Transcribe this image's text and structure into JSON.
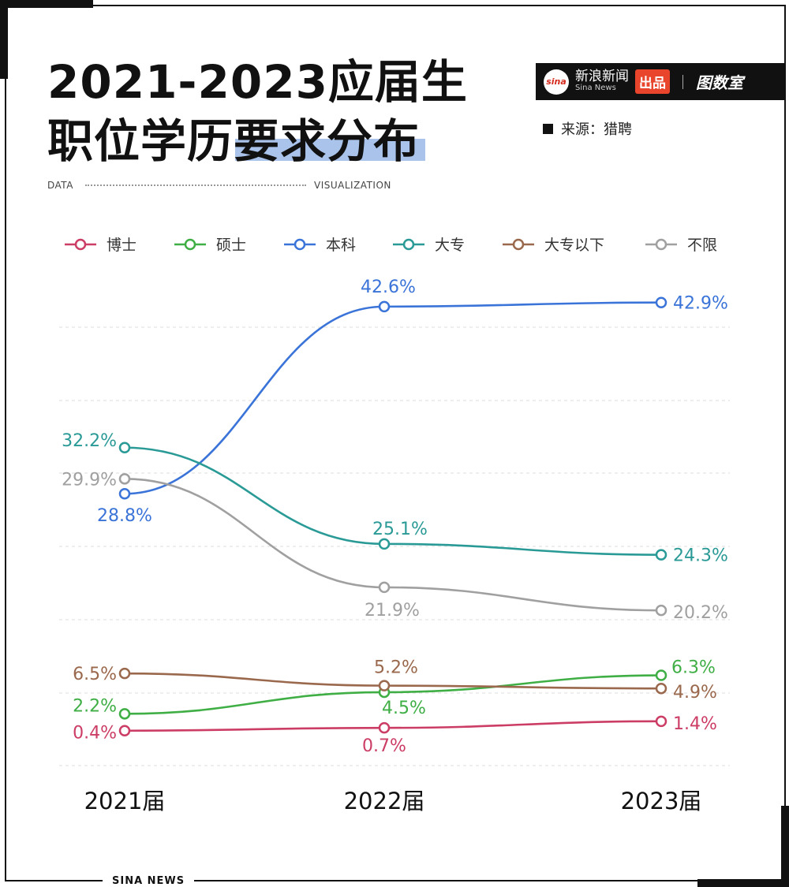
{
  "header": {
    "title_line1": "2021-2023应届生",
    "title_line2": "职位学历要求分布",
    "data_label": "DATA",
    "visualization_label": "VISUALIZATION",
    "brand_logo": "sina",
    "brand_name": "新浪新闻",
    "brand_sub": "Sina News",
    "brand_tag": "出品",
    "brand_logo2": "图数室",
    "source": "来源：猎聘"
  },
  "footer": {
    "label": "SINA  NEWS"
  },
  "colors": {
    "博士": "#cc3d65",
    "硕士": "#3fae45",
    "本科": "#3b74d8",
    "大专": "#2a9a96",
    "大专以下": "#9a684c",
    "不限": "#a0a0a0"
  },
  "chart_data": {
    "type": "line",
    "categories": [
      "2021届",
      "2022届",
      "2023届"
    ],
    "legend_position": "top",
    "grid": true,
    "y_scale": "broken",
    "series": [
      {
        "name": "博士",
        "values": [
          0.4,
          0.7,
          1.4
        ],
        "labels": [
          "0.4%",
          "0.7%",
          "1.4%"
        ]
      },
      {
        "name": "硕士",
        "values": [
          2.2,
          4.5,
          6.3
        ],
        "labels": [
          "2.2%",
          "4.5%",
          "6.3%"
        ]
      },
      {
        "name": "本科",
        "values": [
          28.8,
          42.6,
          42.9
        ],
        "labels": [
          "28.8%",
          "42.6%",
          "42.9%"
        ]
      },
      {
        "name": "大专",
        "values": [
          32.2,
          25.1,
          24.3
        ],
        "labels": [
          "32.2%",
          "25.1%",
          "24.3%"
        ]
      },
      {
        "name": "大专以下",
        "values": [
          6.5,
          5.2,
          4.9
        ],
        "labels": [
          "6.5%",
          "5.2%",
          "4.9%"
        ]
      },
      {
        "name": "不限",
        "values": [
          29.9,
          21.9,
          20.2
        ],
        "labels": [
          "29.9%",
          "21.9%",
          "20.2%"
        ]
      }
    ]
  }
}
